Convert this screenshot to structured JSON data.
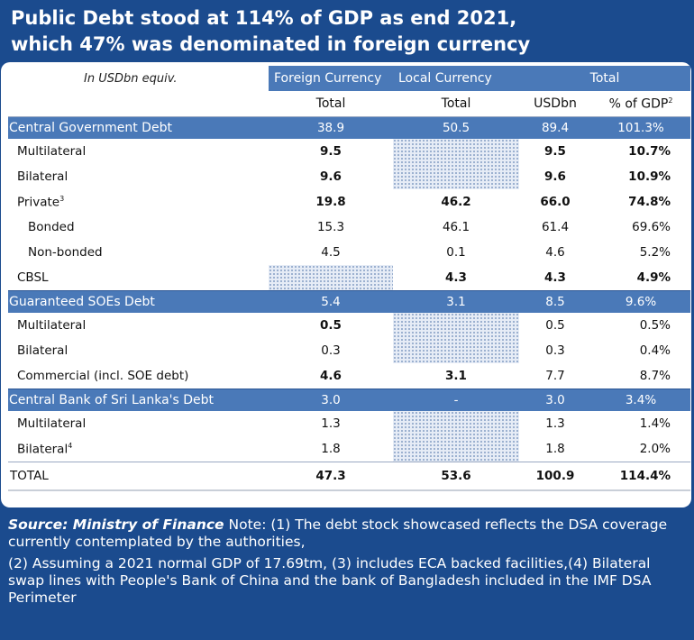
{
  "title": {
    "line1": "Public Debt stood at 114% of GDP as end 2021,",
    "line2": "which 47% was denominated in foreign currency"
  },
  "table": {
    "units": "In USDbn equiv.",
    "col_groups": [
      "Foreign Currency",
      "Local Currency",
      "Total"
    ],
    "subheaders": [
      "Total",
      "Total",
      "USDbn",
      "% of GDP"
    ],
    "subheader_sup": "2",
    "rows": [
      {
        "label": "Central Government Debt",
        "sup": "",
        "fc": "38.9",
        "lc": "50.5",
        "usd": "89.4",
        "gdp": "101.3%"
      },
      {
        "label": "Multilateral",
        "sup": "",
        "fc": "9.5",
        "lc": "",
        "usd": "9.5",
        "gdp": "10.7%"
      },
      {
        "label": "Bilateral",
        "sup": "",
        "fc": "9.6",
        "lc": "",
        "usd": "9.6",
        "gdp": "10.9%"
      },
      {
        "label": "Private",
        "sup": "3",
        "fc": "19.8",
        "lc": "46.2",
        "usd": "66.0",
        "gdp": "74.8%"
      },
      {
        "label": "Bonded",
        "sup": "",
        "fc": "15.3",
        "lc": "46.1",
        "usd": "61.4",
        "gdp": "69.6%"
      },
      {
        "label": "Non-bonded",
        "sup": "",
        "fc": "4.5",
        "lc": "0.1",
        "usd": "4.6",
        "gdp": "5.2%"
      },
      {
        "label": "CBSL",
        "sup": "",
        "fc": "",
        "lc": "4.3",
        "usd": "4.3",
        "gdp": "4.9%"
      },
      {
        "label": "Guaranteed SOEs Debt",
        "sup": "",
        "fc": "5.4",
        "lc": "3.1",
        "usd": "8.5",
        "gdp": "9.6%"
      },
      {
        "label": "Multilateral",
        "sup": "",
        "fc": "0.5",
        "lc": "",
        "usd": "0.5",
        "gdp": "0.5%"
      },
      {
        "label": "Bilateral",
        "sup": "",
        "fc": "0.3",
        "lc": "",
        "usd": "0.3",
        "gdp": "0.4%"
      },
      {
        "label": "Commercial (incl. SOE debt)",
        "sup": "",
        "fc": "4.6",
        "lc": "3.1",
        "usd": "7.7",
        "gdp": "8.7%"
      },
      {
        "label": "Central Bank of Sri Lanka's Debt",
        "sup": "",
        "fc": "3.0",
        "lc": "-",
        "usd": "3.0",
        "gdp": "3.4%"
      },
      {
        "label": "Multilateral",
        "sup": "",
        "fc": "1.3",
        "lc": "",
        "usd": "1.3",
        "gdp": "1.4%"
      },
      {
        "label": "Bilateral",
        "sup": "4",
        "fc": "1.8",
        "lc": "",
        "usd": "1.8",
        "gdp": "2.0%"
      },
      {
        "label": "TOTAL",
        "sup": "",
        "fc": "47.3",
        "lc": "53.6",
        "usd": "100.9",
        "gdp": "114.4%"
      }
    ]
  },
  "footer": {
    "source": "Source: Ministry of Finance",
    "note1": " Note: (1) The debt stock showcased reflects the DSA coverage currently contemplated by the authorities,",
    "note2": "(2) Assuming a 2021 normal GDP of 17.69tm, (3) includes ECA backed facilities,(4) Bilateral swap lines with People's Bank of China and the bank of Bangladesh included in the IMF DSA Perimeter"
  },
  "colors": {
    "navy": "#1b4b8e",
    "header_blue": "#4a79b8",
    "stipple": "#8aa2c6"
  }
}
